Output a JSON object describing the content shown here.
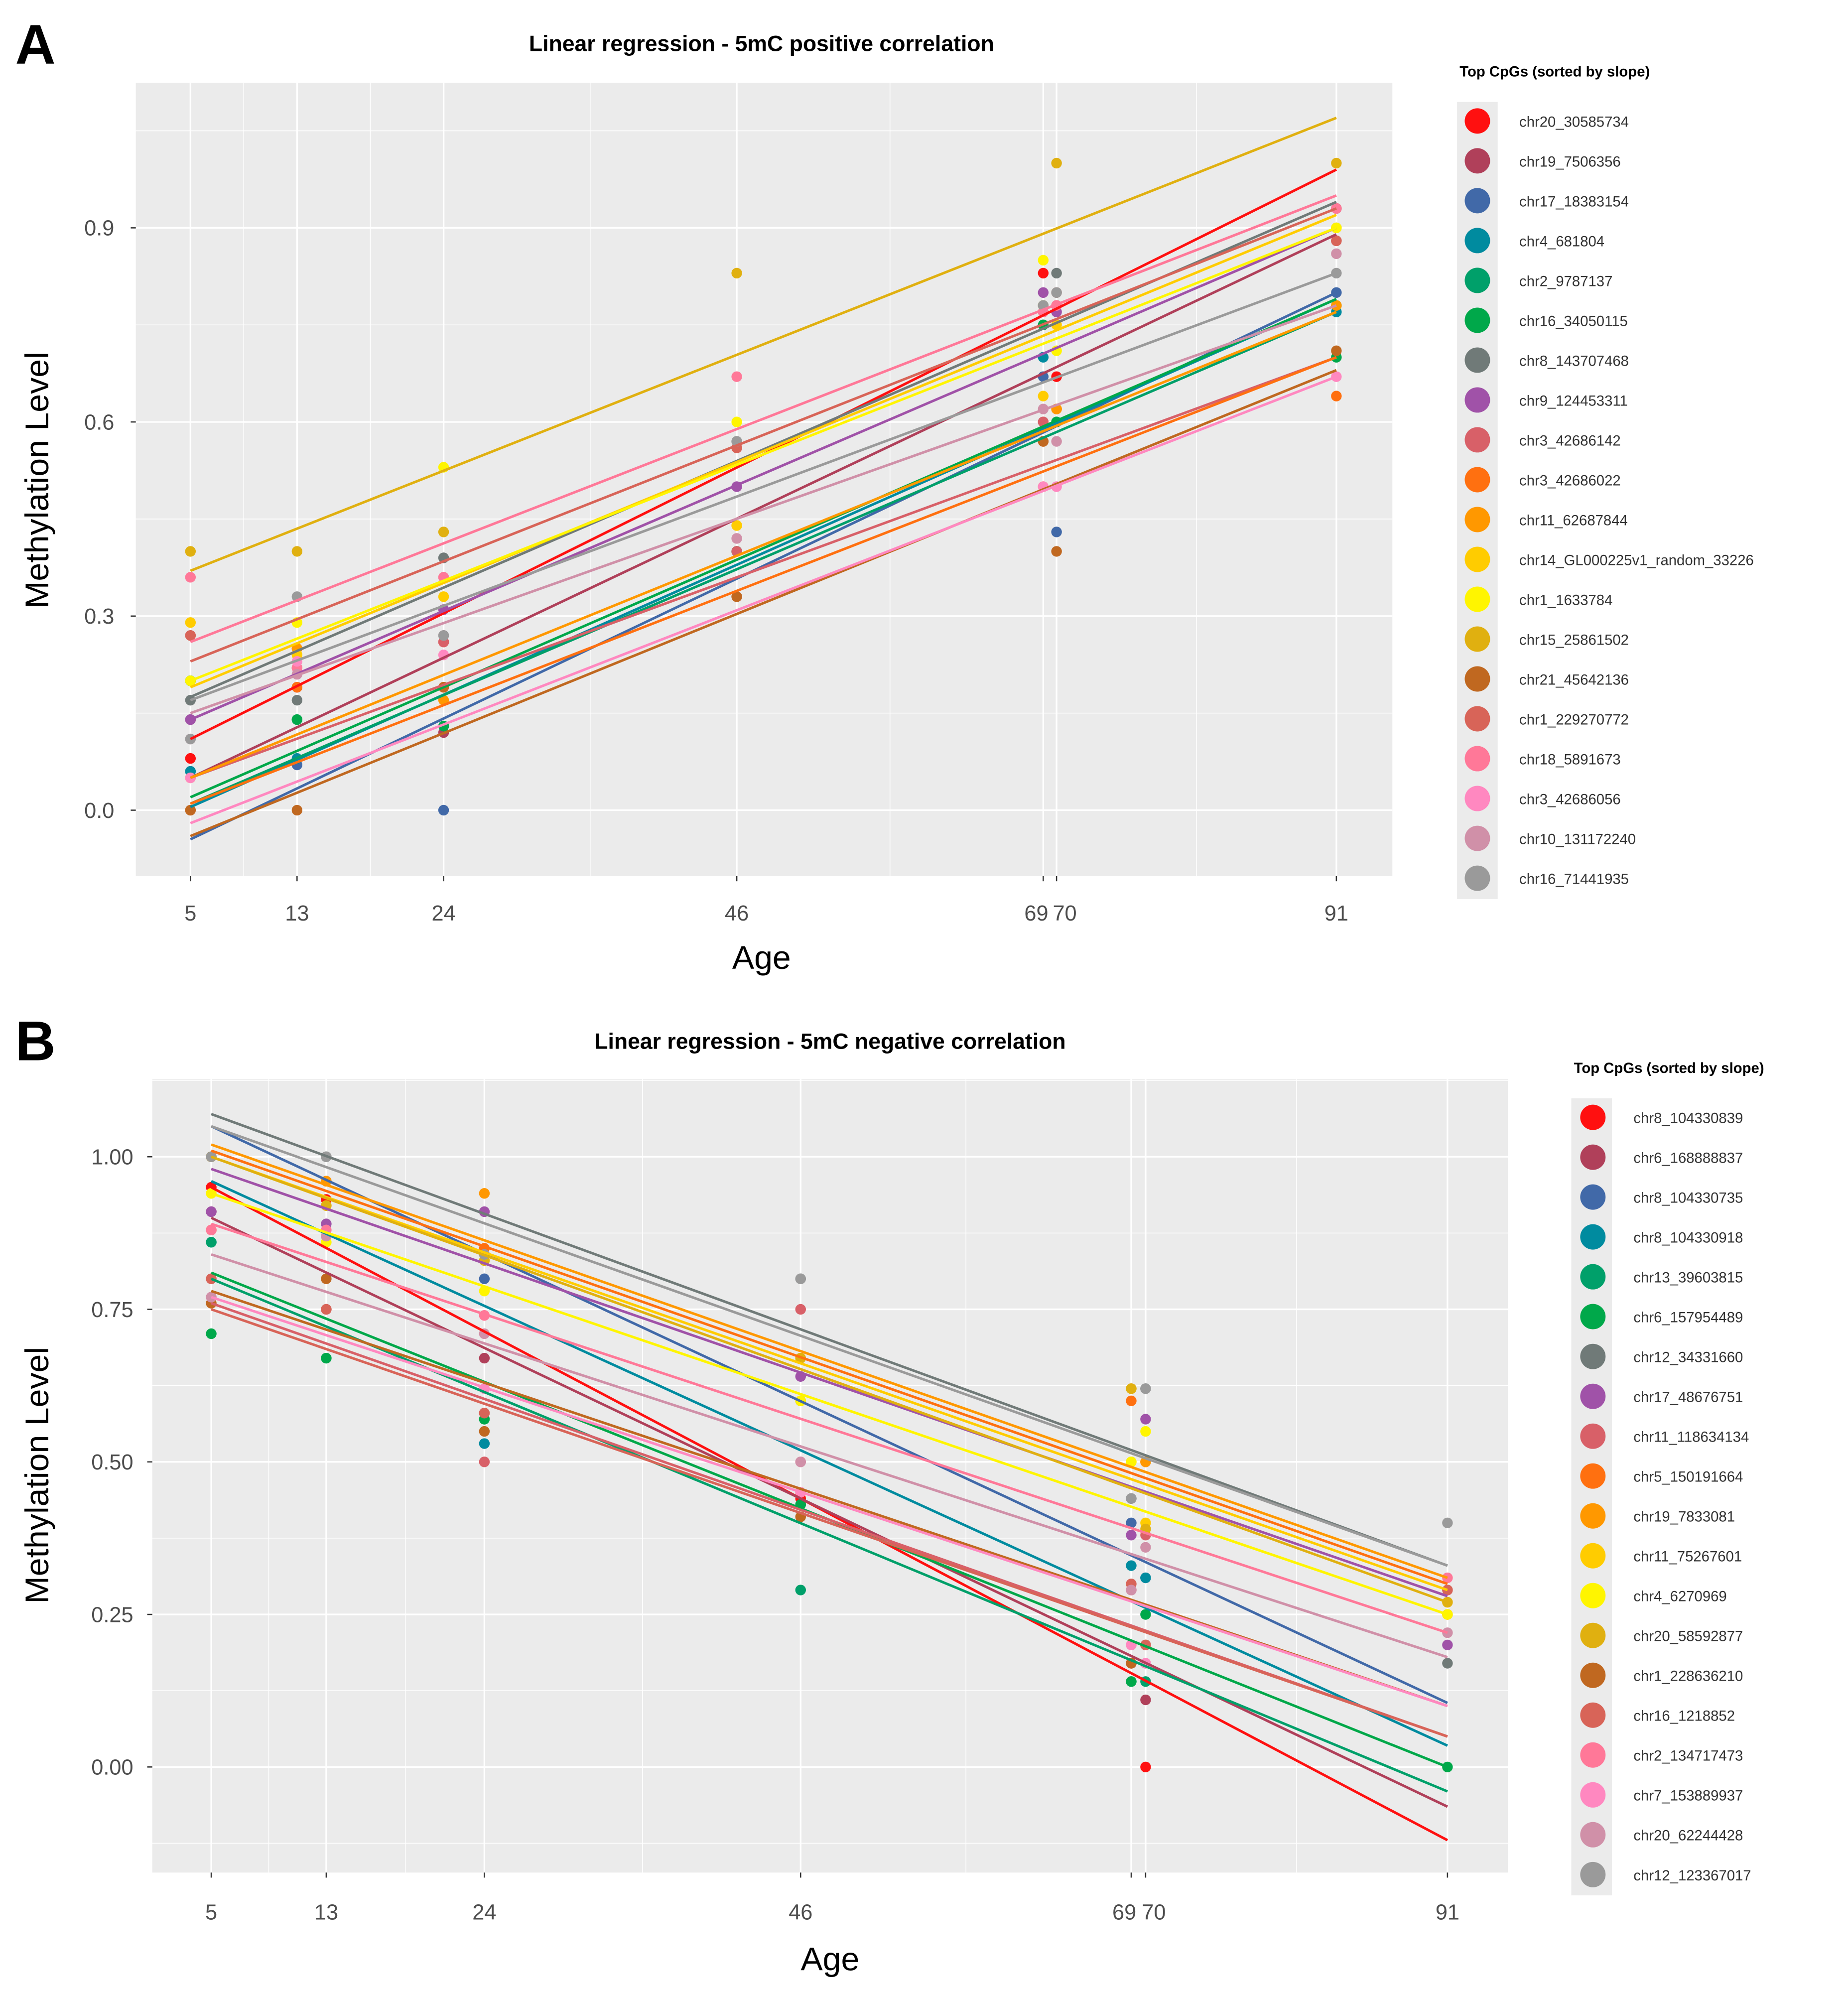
{
  "colors": [
    "#FF1010",
    "#B0405A",
    "#4169A8",
    "#008B9F",
    "#00A06A",
    "#00A84A",
    "#707A78",
    "#A052A8",
    "#D86068",
    "#FF7010",
    "#FF9800",
    "#FFCC00",
    "#FFF500",
    "#E0B010",
    "#C06820",
    "#D86458",
    "#FF7898",
    "#FF88C0",
    "#D090A8",
    "#9A9A9A"
  ],
  "chart_data": [
    {
      "panel_label": "A",
      "type": "scatter",
      "title": "Linear regression - 5mC positive correlation",
      "xlabel": "Age",
      "ylabel": "Methylation Level",
      "x_ticks": [
        5,
        13,
        24,
        46,
        69,
        70,
        91
      ],
      "x_minor": [
        9,
        18.5,
        35,
        57.5,
        80.5
      ],
      "y_ticks": [
        0.0,
        0.3,
        0.6,
        0.9
      ],
      "y_tick_labels": [
        "0.0",
        "0.3",
        "0.6",
        "0.9"
      ],
      "xlim": [
        0.9,
        95.2
      ],
      "ylim": [
        -0.102,
        1.124
      ],
      "grid": true,
      "legend_title": "Top CpGs (sorted by slope)",
      "legend_position": "right",
      "ages": [
        5,
        13,
        24,
        46,
        69,
        70,
        91
      ],
      "series": [
        {
          "name": "chr20_30585734",
          "fit": [
            0.11,
            0.99
          ],
          "points": [
            0.08,
            0.25,
            0.26,
            0.56,
            0.83,
            0.67,
            0.93
          ]
        },
        {
          "name": "chr19_7506356",
          "fit": [
            0.05,
            0.89
          ],
          "points": [
            0.14,
            0.19,
            0.12,
            0.4,
            0.6,
            0.78,
            0.88
          ]
        },
        {
          "name": "chr17_18383154",
          "fit": [
            -0.045,
            0.8
          ],
          "points": [
            0.06,
            0.07,
            0.0,
            0.33,
            0.67,
            0.43,
            0.8
          ]
        },
        {
          "name": "chr4_681804",
          "fit": [
            0.005,
            0.79
          ],
          "points": [
            0.06,
            0.08,
            0.13,
            0.4,
            0.7,
            0.6,
            0.77
          ]
        },
        {
          "name": "chr2_9787137",
          "fit": [
            0.01,
            0.77
          ],
          "points": [
            0.2,
            0.14,
            0.13,
            0.4,
            0.75,
            0.6,
            0.78
          ]
        },
        {
          "name": "chr16_34050115",
          "fit": [
            0.02,
            0.79
          ],
          "points": [
            0.2,
            0.14,
            0.13,
            0.4,
            0.75,
            0.6,
            0.7
          ]
        },
        {
          "name": "chr8_143707468",
          "fit": [
            0.175,
            0.94
          ],
          "points": [
            0.17,
            0.17,
            0.39,
            0.57,
            0.78,
            0.83,
            0.93
          ]
        },
        {
          "name": "chr9_124453311",
          "fit": [
            0.14,
            0.9
          ],
          "points": [
            0.14,
            0.19,
            0.31,
            0.5,
            0.8,
            0.77,
            0.9
          ]
        },
        {
          "name": "chr3_42686142",
          "fit": [
            0.05,
            0.7
          ],
          "points": [
            0.27,
            0.19,
            0.26,
            0.4,
            0.6,
            0.78,
            0.88
          ]
        },
        {
          "name": "chr3_42686022",
          "fit": [
            0.01,
            0.7
          ],
          "points": [
            0.0,
            0.19,
            0.19,
            0.33,
            0.57,
            0.62,
            0.64
          ]
        },
        {
          "name": "chr11_62687844",
          "fit": [
            0.05,
            0.77
          ],
          "points": [
            0.05,
            0.25,
            0.17,
            0.44,
            0.5,
            0.62,
            0.78
          ]
        },
        {
          "name": "chr14_GL000225v1_random_33226",
          "fit": [
            0.19,
            0.92
          ],
          "points": [
            0.29,
            0.24,
            0.33,
            0.44,
            0.64,
            0.75,
            0.9
          ]
        },
        {
          "name": "chr1_1633784",
          "fit": [
            0.2,
            0.9
          ],
          "points": [
            0.2,
            0.29,
            0.53,
            0.6,
            0.85,
            0.71,
            0.9
          ]
        },
        {
          "name": "chr15_25861502",
          "fit": [
            0.37,
            1.07
          ],
          "points": [
            0.4,
            0.4,
            0.43,
            0.83,
            0.78,
            1.0,
            1.0
          ]
        },
        {
          "name": "chr21_45642136",
          "fit": [
            -0.04,
            0.68
          ],
          "points": [
            0.0,
            0.0,
            0.19,
            0.33,
            0.57,
            0.4,
            0.71
          ]
        },
        {
          "name": "chr1_229270772",
          "fit": [
            0.23,
            0.93
          ],
          "points": [
            0.27,
            0.22,
            0.36,
            0.56,
            0.77,
            0.8,
            0.88
          ]
        },
        {
          "name": "chr18_5891673",
          "fit": [
            0.26,
            0.95
          ],
          "points": [
            0.36,
            0.22,
            0.36,
            0.67,
            0.77,
            0.78,
            0.93
          ]
        },
        {
          "name": "chr3_42686056",
          "fit": [
            -0.02,
            0.67
          ],
          "points": [
            0.05,
            0.23,
            0.24,
            0.42,
            0.5,
            0.5,
            0.67
          ]
        },
        {
          "name": "chr10_131172240",
          "fit": [
            0.15,
            0.78
          ],
          "points": [
            0.11,
            0.21,
            0.27,
            0.42,
            0.62,
            0.57,
            0.86
          ]
        },
        {
          "name": "chr16_71441935",
          "fit": [
            0.17,
            0.83
          ],
          "points": [
            0.11,
            0.33,
            0.27,
            0.57,
            0.78,
            0.8,
            0.83
          ]
        }
      ]
    },
    {
      "panel_label": "B",
      "type": "scatter",
      "title": "Linear regression - 5mC negative correlation",
      "xlabel": "Age",
      "ylabel": "Methylation Level",
      "x_ticks": [
        5,
        13,
        24,
        46,
        69,
        70,
        91
      ],
      "x_minor": [
        9,
        18.5,
        35,
        57.5,
        80.5
      ],
      "y_ticks": [
        0.0,
        0.25,
        0.5,
        0.75,
        1.0
      ],
      "y_tick_labels": [
        "0.00",
        "0.25",
        "0.50",
        "0.75",
        "1.00"
      ],
      "xlim": [
        0.9,
        95.2
      ],
      "ylim": [
        -0.173,
        1.127
      ],
      "grid": true,
      "legend_title": "Top CpGs (sorted by slope)",
      "legend_position": "right",
      "ages": [
        5,
        13,
        24,
        46,
        69,
        70,
        91
      ],
      "series": [
        {
          "name": "chr8_104330839",
          "fit": [
            0.95,
            -0.12
          ],
          "points": [
            0.95,
            0.93,
            0.58,
            0.44,
            0.17,
            0.0,
            null
          ]
        },
        {
          "name": "chr6_168888837",
          "fit": [
            0.9,
            -0.065
          ],
          "points": [
            0.91,
            0.75,
            0.67,
            0.45,
            0.17,
            0.11,
            null
          ]
        },
        {
          "name": "chr8_104330735",
          "fit": [
            1.05,
            0.105
          ],
          "points": [
            1.0,
            0.96,
            0.8,
            0.6,
            0.4,
            0.31,
            null
          ]
        },
        {
          "name": "chr8_104330918",
          "fit": [
            0.96,
            0.035
          ],
          "points": [
            0.86,
            0.87,
            0.53,
            0.43,
            0.33,
            0.31,
            null
          ]
        },
        {
          "name": "chr13_39603815",
          "fit": [
            0.8,
            -0.04
          ],
          "points": [
            0.86,
            0.67,
            0.57,
            0.29,
            0.14,
            0.14,
            null
          ]
        },
        {
          "name": "chr6_157954489",
          "fit": [
            0.81,
            0.0
          ],
          "points": [
            0.71,
            0.67,
            0.57,
            0.43,
            0.14,
            0.25,
            0.0
          ]
        },
        {
          "name": "chr12_34331660",
          "fit": [
            1.07,
            0.33
          ],
          "points": [
            1.0,
            1.0,
            0.84,
            0.8,
            0.44,
            0.62,
            0.17
          ]
        },
        {
          "name": "chr17_48676751",
          "fit": [
            0.98,
            0.28
          ],
          "points": [
            0.91,
            0.89,
            0.91,
            0.64,
            0.38,
            0.57,
            0.2
          ]
        },
        {
          "name": "chr11_118634134",
          "fit": [
            0.76,
            0.05
          ],
          "points": [
            0.8,
            0.75,
            0.5,
            0.75,
            0.29,
            0.38,
            0.29
          ]
        },
        {
          "name": "chr5_150191664",
          "fit": [
            1.01,
            0.3
          ],
          "points": [
            0.88,
            0.96,
            0.85,
            0.6,
            0.6,
            0.5,
            0.25
          ]
        },
        {
          "name": "chr19_7833081",
          "fit": [
            1.02,
            0.31
          ],
          "points": [
            1.0,
            0.96,
            0.94,
            0.67,
            0.62,
            0.5,
            0.25
          ]
        },
        {
          "name": "chr11_75267601",
          "fit": [
            1.0,
            0.29
          ],
          "points": [
            1.0,
            0.92,
            0.83,
            0.67,
            0.5,
            0.4,
            0.27
          ]
        },
        {
          "name": "chr4_6270969",
          "fit": [
            0.94,
            0.25
          ],
          "points": [
            0.94,
            0.86,
            0.78,
            0.6,
            0.5,
            0.55,
            0.25
          ]
        },
        {
          "name": "chr20_58592877",
          "fit": [
            1.0,
            0.27
          ],
          "points": [
            1.0,
            0.92,
            0.83,
            0.67,
            0.62,
            0.39,
            0.27
          ]
        },
        {
          "name": "chr1_228636210",
          "fit": [
            0.78,
            0.1
          ],
          "points": [
            0.76,
            0.8,
            0.55,
            0.41,
            0.17,
            0.2,
            null
          ]
        },
        {
          "name": "chr16_1218852",
          "fit": [
            0.75,
            0.05
          ],
          "points": [
            0.8,
            0.75,
            0.58,
            0.45,
            0.3,
            0.2,
            0.29
          ]
        },
        {
          "name": "chr2_134717473",
          "fit": [
            0.89,
            0.22
          ],
          "points": [
            0.88,
            0.88,
            0.74,
            0.5,
            0.2,
            0.17,
            0.31
          ]
        },
        {
          "name": "chr7_153889937",
          "fit": [
            0.77,
            0.1
          ],
          "points": [
            0.77,
            0.87,
            0.62,
            0.45,
            0.2,
            0.17,
            null
          ]
        },
        {
          "name": "chr20_62244428",
          "fit": [
            0.84,
            0.18
          ],
          "points": [
            0.77,
            0.87,
            0.71,
            0.5,
            0.29,
            0.36,
            0.22
          ]
        },
        {
          "name": "chr12_123367017",
          "fit": [
            1.05,
            0.33
          ],
          "points": [
            1.0,
            1.0,
            0.84,
            0.8,
            0.44,
            0.62,
            0.4
          ]
        }
      ]
    }
  ]
}
